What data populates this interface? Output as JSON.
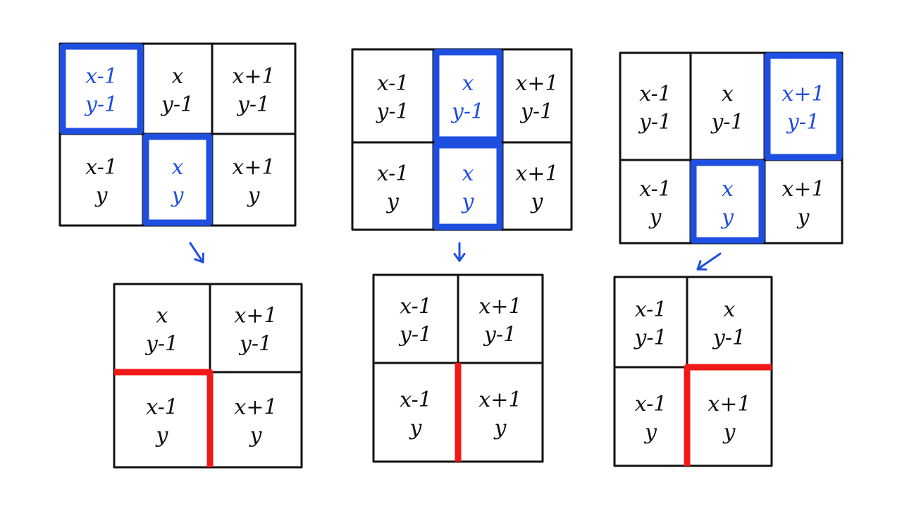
{
  "colors": {
    "ink": "#111111",
    "blue": "#1f4fe0",
    "red": "#f01818",
    "background": "#ffffff"
  },
  "panels": [
    {
      "id": "case-diagonal",
      "top_grid": {
        "cells": [
          [
            "x-1",
            "y-1"
          ],
          [
            "x",
            "y-1"
          ],
          [
            "x+1",
            "y-1"
          ],
          [
            "x-1",
            "y"
          ],
          [
            "x",
            "y"
          ],
          [
            "x+1",
            "y"
          ]
        ],
        "highlighted": [
          0,
          4
        ]
      },
      "arrow": "down-right",
      "bottom_grid": {
        "cells": [
          [
            "x",
            "y-1"
          ],
          [
            "x+1",
            "y-1"
          ],
          [
            "x-1",
            "y"
          ],
          [
            "x+1",
            "y"
          ]
        ],
        "red_mark": "top-right-corner-of-bottom-left"
      }
    },
    {
      "id": "case-vertical",
      "top_grid": {
        "cells": [
          [
            "x-1",
            "y-1"
          ],
          [
            "x",
            "y-1"
          ],
          [
            "x+1",
            "y-1"
          ],
          [
            "x-1",
            "y"
          ],
          [
            "x",
            "y"
          ],
          [
            "x+1",
            "y"
          ]
        ],
        "highlighted": [
          1,
          4
        ]
      },
      "arrow": "down",
      "bottom_grid": {
        "cells": [
          [
            "x-1",
            "y-1"
          ],
          [
            "x+1",
            "y-1"
          ],
          [
            "x-1",
            "y"
          ],
          [
            "x+1",
            "y"
          ]
        ],
        "red_mark": "middle-vertical-bottom-half"
      }
    },
    {
      "id": "case-anti-diagonal",
      "top_grid": {
        "cells": [
          [
            "x-1",
            "y-1"
          ],
          [
            "x",
            "y-1"
          ],
          [
            "x+1",
            "y-1"
          ],
          [
            "x-1",
            "y"
          ],
          [
            "x",
            "y"
          ],
          [
            "x+1",
            "y"
          ]
        ],
        "highlighted": [
          2,
          4
        ]
      },
      "arrow": "down-left",
      "bottom_grid": {
        "cells": [
          [
            "x-1",
            "y-1"
          ],
          [
            "x",
            "y-1"
          ],
          [
            "x-1",
            "y"
          ],
          [
            "x+1",
            "y"
          ]
        ],
        "red_mark": "top-left-corner-of-bottom-right"
      }
    }
  ]
}
